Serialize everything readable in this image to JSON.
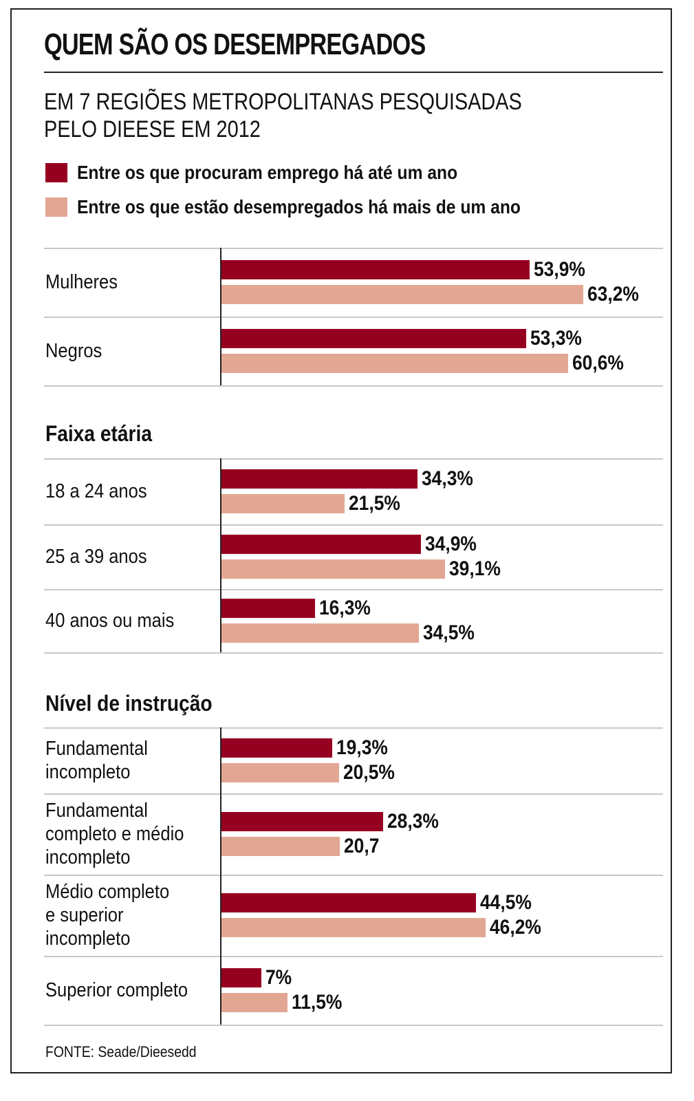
{
  "title": "QUEM SÃO OS DESEMPREGADOS",
  "subtitle_lines": [
    "EM 7 REGIÕES METROPOLITANAS PESQUISADAS",
    "PELO DIEESE EM 2012"
  ],
  "colors": {
    "series1": "#960020",
    "series2": "#e2a793"
  },
  "source": "FONTE: Seade/Dieesedd",
  "chart_data": {
    "type": "bar",
    "orientation": "horizontal",
    "title": "QUEM SÃO OS DESEMPREGADOS",
    "subtitle": "EM 7 REGIÕES METROPOLITANAS PESQUISADAS PELO DIEESE EM 2012",
    "xlabel": "",
    "ylabel": "",
    "grid": false,
    "legend_placement": "top-left",
    "xlim": [
      0,
      100
    ],
    "series": [
      {
        "name": "Entre os que procuram emprego há até um ano",
        "color": "#960020"
      },
      {
        "name": "Entre os que estão desempregados há mais de um ano",
        "color": "#e2a793"
      }
    ],
    "groups": [
      {
        "heading": "",
        "rows": [
          {
            "category": "Mulheres",
            "values": [
              53.9,
              63.2
            ],
            "labels": [
              "53,9%",
              "63,2%"
            ]
          },
          {
            "category": "Negros",
            "values": [
              53.3,
              60.6
            ],
            "labels": [
              "53,3%",
              "60,6%"
            ]
          }
        ]
      },
      {
        "heading": "Faixa etária",
        "rows": [
          {
            "category": "18 a 24 anos",
            "values": [
              34.3,
              21.5
            ],
            "labels": [
              "34,3%",
              "21,5%"
            ]
          },
          {
            "category": "25 a 39 anos",
            "values": [
              34.9,
              39.1
            ],
            "labels": [
              "34,9%",
              "39,1%"
            ]
          },
          {
            "category": "40 anos ou mais",
            "values": [
              16.3,
              34.5
            ],
            "labels": [
              "16,3%",
              "34,5%"
            ]
          }
        ]
      },
      {
        "heading": "Nível de instrução",
        "rows": [
          {
            "category": "Fundamental\nincompleto",
            "values": [
              19.3,
              20.5
            ],
            "labels": [
              "19,3%",
              "20,5%"
            ]
          },
          {
            "category": "Fundamental\ncompleto e médio\nincompleto",
            "values": [
              28.3,
              20.7
            ],
            "labels": [
              "28,3%",
              "20,7"
            ]
          },
          {
            "category": "Médio completo\ne superior\nincompleto",
            "values": [
              44.5,
              46.2
            ],
            "labels": [
              "44,5%",
              "46,2%"
            ]
          },
          {
            "category": "Superior completo",
            "values": [
              7,
              11.5
            ],
            "labels": [
              "7%",
              "11,5%"
            ]
          }
        ]
      }
    ]
  }
}
